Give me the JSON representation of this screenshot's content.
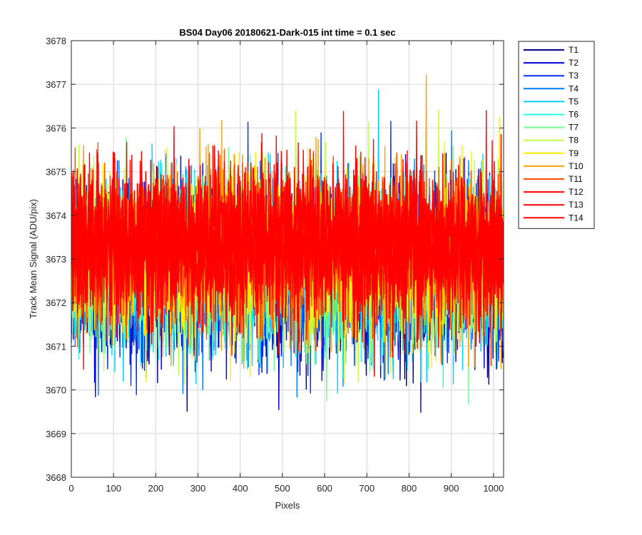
{
  "chart_data": {
    "type": "line",
    "title": "BS04 Day06 20180621-Dark-015 int time = 0.1 sec",
    "xlabel": "Pixels",
    "ylabel": "Track Mean Signal (ADU/pix)",
    "xlim": [
      0,
      1024
    ],
    "ylim": [
      3668,
      3678
    ],
    "xticks": [
      0,
      100,
      200,
      300,
      400,
      500,
      600,
      700,
      800,
      900,
      1000
    ],
    "yticks": [
      3668,
      3669,
      3670,
      3671,
      3672,
      3673,
      3674,
      3675,
      3676,
      3677,
      3678
    ],
    "grid": true,
    "legend_position": "outside-top-right",
    "num_points": 1024,
    "series": [
      {
        "name": "T1",
        "color": "#00008f",
        "mean": 3672.6,
        "std": 0.95
      },
      {
        "name": "T2",
        "color": "#0000df",
        "mean": 3672.7,
        "std": 0.95
      },
      {
        "name": "T3",
        "color": "#0030ff",
        "mean": 3672.75,
        "std": 0.95
      },
      {
        "name": "T4",
        "color": "#0080ff",
        "mean": 3672.8,
        "std": 0.95
      },
      {
        "name": "T5",
        "color": "#00d0ff",
        "mean": 3672.8,
        "std": 0.95
      },
      {
        "name": "T6",
        "color": "#20ffdf",
        "mean": 3672.85,
        "std": 0.95
      },
      {
        "name": "T7",
        "color": "#70ff8f",
        "mean": 3672.9,
        "std": 0.95
      },
      {
        "name": "T8",
        "color": "#bfff40",
        "mean": 3673.0,
        "std": 0.95
      },
      {
        "name": "T9",
        "color": "#ffef00",
        "mean": 3673.1,
        "std": 0.95
      },
      {
        "name": "T10",
        "color": "#ffa000",
        "mean": 3673.15,
        "std": 0.95
      },
      {
        "name": "T11",
        "color": "#ff5000",
        "mean": 3673.2,
        "std": 0.9
      },
      {
        "name": "T12",
        "color": "#ff0000",
        "mean": 3673.3,
        "std": 0.9
      },
      {
        "name": "T13",
        "color": "#ff0000",
        "mean": 3673.35,
        "std": 0.85
      },
      {
        "name": "T14",
        "color": "#ff0000",
        "mean": 3673.4,
        "std": 0.85
      }
    ]
  }
}
